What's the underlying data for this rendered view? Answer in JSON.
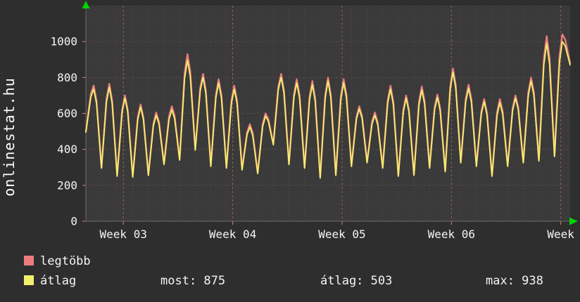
{
  "window": {
    "brand": "onlinestat.hu"
  },
  "chart_data": {
    "type": "line",
    "title": "",
    "xlabel": "",
    "ylabel": "",
    "grid": true,
    "legend_position": "bottom-left",
    "ylim": [
      0,
      1200
    ],
    "y_ticks": [
      0,
      200,
      400,
      600,
      800,
      1000
    ],
    "x_ticks": [
      {
        "day": 2.4,
        "label": "Week 03"
      },
      {
        "day": 9.4,
        "label": "Week 04"
      },
      {
        "day": 16.4,
        "label": "Week 05"
      },
      {
        "day": 23.4,
        "label": "Week 06"
      },
      {
        "day": 30.4,
        "label": "Week"
      }
    ],
    "days": 31,
    "series": [
      {
        "name": "legtöbb",
        "color": "#ed7c7c",
        "width": 2.4,
        "peaks": [
          755,
          765,
          700,
          650,
          605,
          640,
          930,
          820,
          790,
          755,
          540,
          600,
          820,
          790,
          780,
          800,
          790,
          640,
          605,
          755,
          700,
          750,
          705,
          850,
          760,
          680,
          680,
          700,
          800,
          1030,
          1040
        ],
        "troughs": [
          500,
          300,
          255,
          250,
          260,
          320,
          345,
          400,
          310,
          300,
          290,
          270,
          430,
          320,
          300,
          245,
          260,
          310,
          330,
          300,
          255,
          260,
          300,
          280,
          330,
          310,
          255,
          310,
          330,
          340,
          365
        ],
        "end": 880
      },
      {
        "name": "átlag",
        "color": "#f2ef6e",
        "width": 1.8,
        "peaks": [
          735,
          745,
          685,
          635,
          590,
          620,
          895,
          800,
          770,
          735,
          525,
          585,
          800,
          770,
          760,
          780,
          770,
          625,
          590,
          735,
          685,
          730,
          690,
          830,
          740,
          665,
          660,
          685,
          780,
          990,
          1000
        ],
        "troughs": [
          495,
          295,
          250,
          245,
          255,
          315,
          340,
          395,
          305,
          295,
          285,
          265,
          425,
          315,
          295,
          240,
          255,
          305,
          325,
          295,
          250,
          255,
          295,
          275,
          325,
          305,
          250,
          305,
          325,
          335,
          360
        ],
        "end": 870
      }
    ],
    "stats": {
      "most": 875,
      "atlag": 503,
      "max": 938
    }
  },
  "legend": {
    "items": [
      {
        "label": "legtöbb",
        "color": "#ed7c7c"
      },
      {
        "label": "átlag",
        "color": "#f2ef6e"
      }
    ]
  },
  "footer": {
    "most": "most: 875",
    "atlag": "átlag: 503",
    "max": "max: 938"
  },
  "colors": {
    "background": "#2e2e2e",
    "plot_background": "#3a3a3a",
    "grid": "#ff8282",
    "axis": "#6a6a6a",
    "text": "#f4f4f4",
    "arrow": "#00d400"
  }
}
